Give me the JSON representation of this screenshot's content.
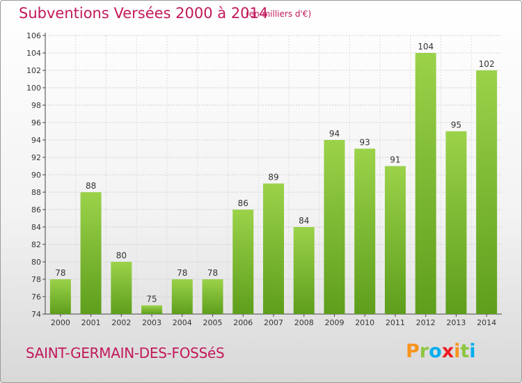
{
  "header": {
    "title": "Subventions Versées 2000 à 2014",
    "unit": "(en milliers d'€)"
  },
  "footer": {
    "place": "SAINT-GERMAIN-DES-FOSSéS",
    "logo": {
      "letters": [
        "P",
        "r",
        "o",
        "x",
        "i",
        "t",
        "i"
      ],
      "colors": [
        "#f7941d",
        "#8dc63f",
        "#00aeef",
        "#ed1c24",
        "#f7941d",
        "#8dc63f",
        "#00aeef"
      ]
    }
  },
  "chart_data": {
    "type": "bar",
    "categories": [
      "2000",
      "2001",
      "2002",
      "2003",
      "2004",
      "2005",
      "2006",
      "2007",
      "2008",
      "2009",
      "2010",
      "2011",
      "2012",
      "2013",
      "2014"
    ],
    "values": [
      78,
      88,
      80,
      75,
      78,
      78,
      86,
      89,
      84,
      94,
      93,
      91,
      104,
      95,
      102
    ],
    "title": "Subventions Versées 2000 à 2014",
    "xlabel": "",
    "ylabel": "",
    "ylim": [
      74,
      106
    ],
    "yticks": [
      74,
      76,
      78,
      80,
      82,
      84,
      86,
      88,
      90,
      92,
      94,
      96,
      98,
      100,
      102,
      104,
      106
    ],
    "grid": true,
    "bar_color_top": "#9bd24a",
    "bar_color_bottom": "#5e9e1c"
  }
}
